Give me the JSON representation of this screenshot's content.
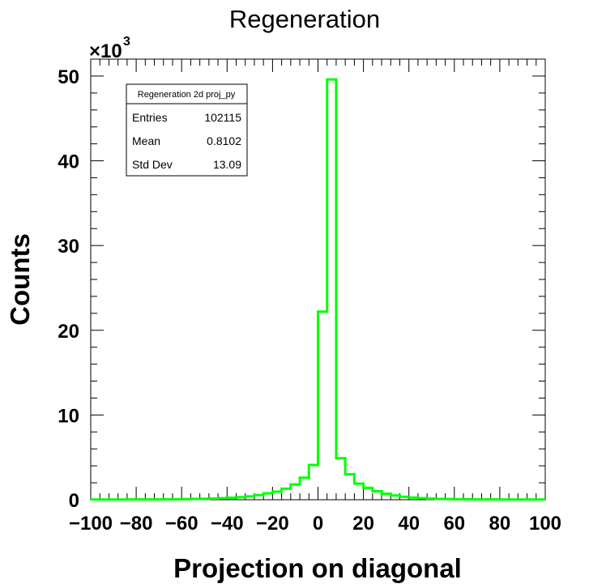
{
  "chart_data": {
    "type": "histogram",
    "title": "Regeneration",
    "xlabel": "Projection on diagonal",
    "ylabel": "Counts",
    "y_multiplier": "×10",
    "y_multiplier_exp": "3",
    "xlim": [
      -100,
      100
    ],
    "ylim": [
      0,
      52
    ],
    "x_tick_labels": [
      "−100",
      "−80",
      "−60",
      "−40",
      "−20",
      "0",
      "20",
      "40",
      "60",
      "80",
      "100"
    ],
    "y_tick_labels": [
      "0",
      "10",
      "20",
      "30",
      "40",
      "50"
    ],
    "line_color": "#00ff00",
    "grid": false,
    "bin_edges": [
      -100,
      -96,
      -92,
      -88,
      -84,
      -80,
      -76,
      -72,
      -68,
      -64,
      -60,
      -56,
      -52,
      -48,
      -44,
      -40,
      -36,
      -32,
      -28,
      -24,
      -20,
      -16,
      -12,
      -8,
      -4,
      0,
      4,
      8,
      12,
      16,
      20,
      24,
      28,
      32,
      36,
      40,
      44,
      48,
      52,
      56,
      60,
      64,
      68,
      72,
      76,
      80,
      84,
      88,
      92,
      96,
      100
    ],
    "values": [
      0.02,
      0.02,
      0.02,
      0.02,
      0.03,
      0.03,
      0.03,
      0.04,
      0.05,
      0.06,
      0.07,
      0.09,
      0.11,
      0.14,
      0.18,
      0.23,
      0.3,
      0.4,
      0.55,
      0.75,
      0.95,
      1.3,
      1.8,
      2.6,
      4.1,
      22.2,
      49.6,
      4.9,
      3.0,
      1.9,
      1.4,
      1.0,
      0.7,
      0.5,
      0.35,
      0.25,
      0.18,
      0.13,
      0.1,
      0.08,
      0.06,
      0.05,
      0.04,
      0.03,
      0.03,
      0.02,
      0.02,
      0.02,
      0.02,
      0.02
    ]
  },
  "stats_box": {
    "title": "Regeneration 2d proj_py",
    "rows": [
      {
        "label": "Entries",
        "value": "102115"
      },
      {
        "label": "Mean",
        "value": "0.8102"
      },
      {
        "label": "Std Dev",
        "value": "13.09"
      }
    ]
  }
}
